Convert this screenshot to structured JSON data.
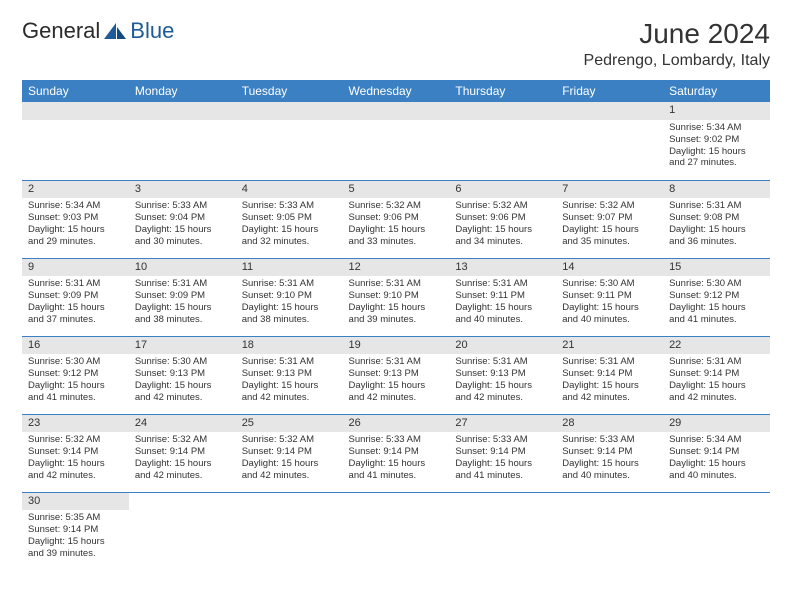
{
  "logo": {
    "text1": "General",
    "text2": "Blue",
    "text1_color": "#2b2b2b",
    "text2_color": "#1f5b99"
  },
  "title": "June 2024",
  "location": "Pedrengo, Lombardy, Italy",
  "header_bg": "#3a80c3",
  "daynum_bg": "#e6e6e6",
  "border_color": "#3a80c3",
  "day_headers": [
    "Sunday",
    "Monday",
    "Tuesday",
    "Wednesday",
    "Thursday",
    "Friday",
    "Saturday"
  ],
  "weeks": [
    [
      null,
      null,
      null,
      null,
      null,
      null,
      {
        "n": "1",
        "sr": "5:34 AM",
        "ss": "9:02 PM",
        "dl": "15 hours and 27 minutes."
      }
    ],
    [
      {
        "n": "2",
        "sr": "5:34 AM",
        "ss": "9:03 PM",
        "dl": "15 hours and 29 minutes."
      },
      {
        "n": "3",
        "sr": "5:33 AM",
        "ss": "9:04 PM",
        "dl": "15 hours and 30 minutes."
      },
      {
        "n": "4",
        "sr": "5:33 AM",
        "ss": "9:05 PM",
        "dl": "15 hours and 32 minutes."
      },
      {
        "n": "5",
        "sr": "5:32 AM",
        "ss": "9:06 PM",
        "dl": "15 hours and 33 minutes."
      },
      {
        "n": "6",
        "sr": "5:32 AM",
        "ss": "9:06 PM",
        "dl": "15 hours and 34 minutes."
      },
      {
        "n": "7",
        "sr": "5:32 AM",
        "ss": "9:07 PM",
        "dl": "15 hours and 35 minutes."
      },
      {
        "n": "8",
        "sr": "5:31 AM",
        "ss": "9:08 PM",
        "dl": "15 hours and 36 minutes."
      }
    ],
    [
      {
        "n": "9",
        "sr": "5:31 AM",
        "ss": "9:09 PM",
        "dl": "15 hours and 37 minutes."
      },
      {
        "n": "10",
        "sr": "5:31 AM",
        "ss": "9:09 PM",
        "dl": "15 hours and 38 minutes."
      },
      {
        "n": "11",
        "sr": "5:31 AM",
        "ss": "9:10 PM",
        "dl": "15 hours and 38 minutes."
      },
      {
        "n": "12",
        "sr": "5:31 AM",
        "ss": "9:10 PM",
        "dl": "15 hours and 39 minutes."
      },
      {
        "n": "13",
        "sr": "5:31 AM",
        "ss": "9:11 PM",
        "dl": "15 hours and 40 minutes."
      },
      {
        "n": "14",
        "sr": "5:30 AM",
        "ss": "9:11 PM",
        "dl": "15 hours and 40 minutes."
      },
      {
        "n": "15",
        "sr": "5:30 AM",
        "ss": "9:12 PM",
        "dl": "15 hours and 41 minutes."
      }
    ],
    [
      {
        "n": "16",
        "sr": "5:30 AM",
        "ss": "9:12 PM",
        "dl": "15 hours and 41 minutes."
      },
      {
        "n": "17",
        "sr": "5:30 AM",
        "ss": "9:13 PM",
        "dl": "15 hours and 42 minutes."
      },
      {
        "n": "18",
        "sr": "5:31 AM",
        "ss": "9:13 PM",
        "dl": "15 hours and 42 minutes."
      },
      {
        "n": "19",
        "sr": "5:31 AM",
        "ss": "9:13 PM",
        "dl": "15 hours and 42 minutes."
      },
      {
        "n": "20",
        "sr": "5:31 AM",
        "ss": "9:13 PM",
        "dl": "15 hours and 42 minutes."
      },
      {
        "n": "21",
        "sr": "5:31 AM",
        "ss": "9:14 PM",
        "dl": "15 hours and 42 minutes."
      },
      {
        "n": "22",
        "sr": "5:31 AM",
        "ss": "9:14 PM",
        "dl": "15 hours and 42 minutes."
      }
    ],
    [
      {
        "n": "23",
        "sr": "5:32 AM",
        "ss": "9:14 PM",
        "dl": "15 hours and 42 minutes."
      },
      {
        "n": "24",
        "sr": "5:32 AM",
        "ss": "9:14 PM",
        "dl": "15 hours and 42 minutes."
      },
      {
        "n": "25",
        "sr": "5:32 AM",
        "ss": "9:14 PM",
        "dl": "15 hours and 42 minutes."
      },
      {
        "n": "26",
        "sr": "5:33 AM",
        "ss": "9:14 PM",
        "dl": "15 hours and 41 minutes."
      },
      {
        "n": "27",
        "sr": "5:33 AM",
        "ss": "9:14 PM",
        "dl": "15 hours and 41 minutes."
      },
      {
        "n": "28",
        "sr": "5:33 AM",
        "ss": "9:14 PM",
        "dl": "15 hours and 40 minutes."
      },
      {
        "n": "29",
        "sr": "5:34 AM",
        "ss": "9:14 PM",
        "dl": "15 hours and 40 minutes."
      }
    ],
    [
      {
        "n": "30",
        "sr": "5:35 AM",
        "ss": "9:14 PM",
        "dl": "15 hours and 39 minutes."
      },
      null,
      null,
      null,
      null,
      null,
      null
    ]
  ],
  "labels": {
    "sunrise": "Sunrise:",
    "sunset": "Sunset:",
    "daylight": "Daylight:"
  }
}
